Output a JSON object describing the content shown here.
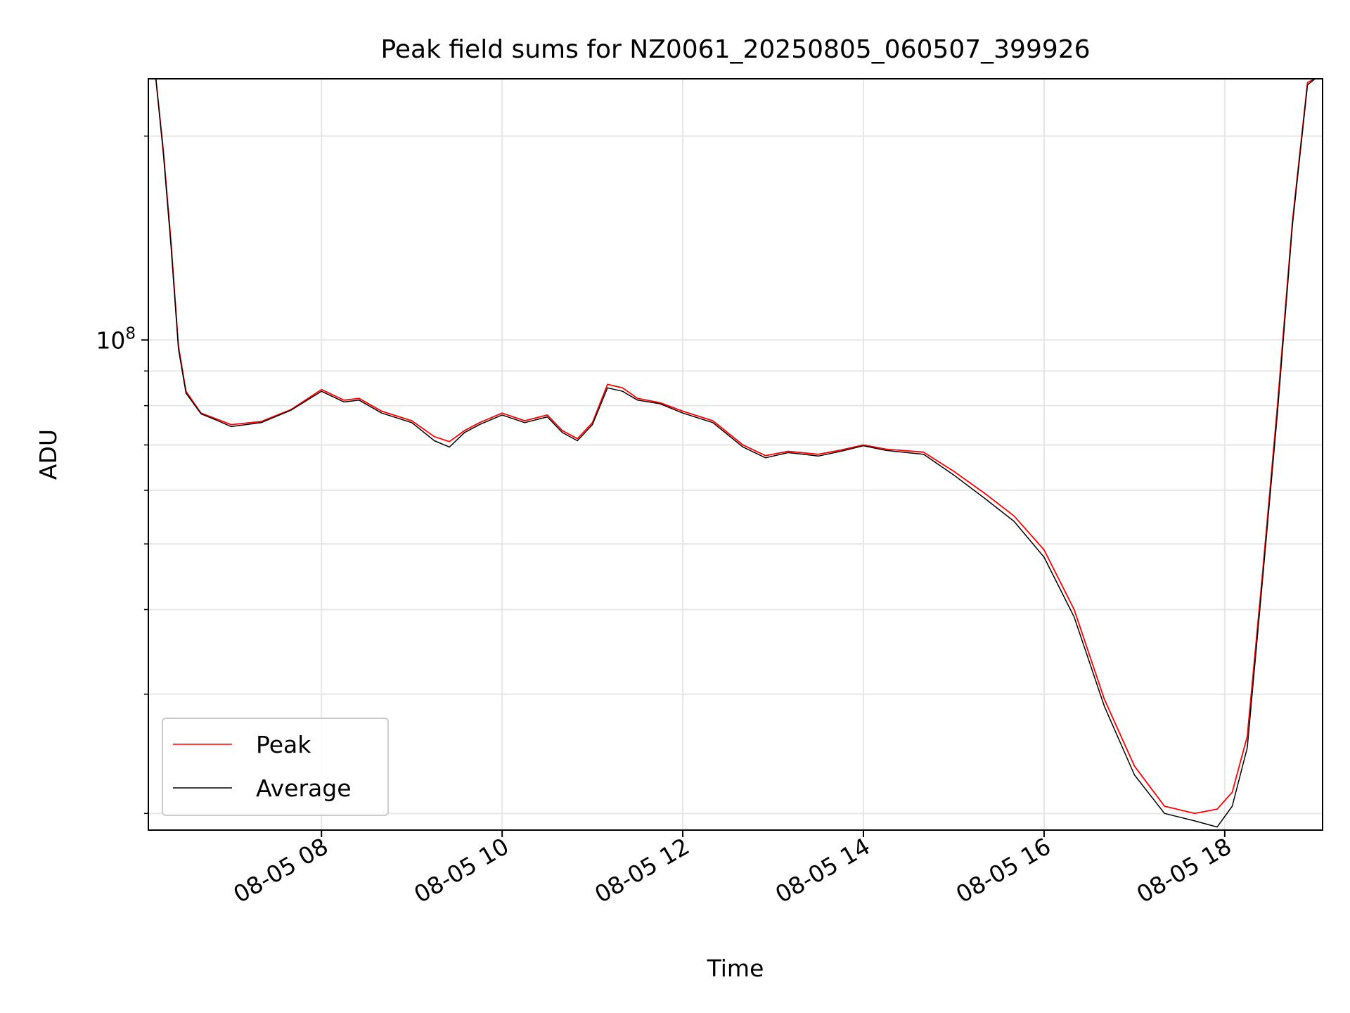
{
  "chart_data": {
    "type": "line",
    "title": "Peak field sums for NZ0061_20250805_060507_399926",
    "xlabel": "Time",
    "ylabel": "ADU",
    "y_scale": "log",
    "grid": true,
    "legend_position": "lower-left",
    "xlim": [
      "2025-08-05 06:05",
      "2025-08-05 19:05"
    ],
    "ylim": [
      18900000,
      243000000
    ],
    "x_ticks": [
      "2025-08-05 08:00",
      "2025-08-05 10:00",
      "2025-08-05 12:00",
      "2025-08-05 14:00",
      "2025-08-05 16:00",
      "2025-08-05 18:00"
    ],
    "x_tick_labels": [
      "08-05 08",
      "08-05 10",
      "08-05 12",
      "08-05 14",
      "08-05 16",
      "08-05 18"
    ],
    "y_major_ticks": [
      100000000
    ],
    "y_tick_labels": [
      {
        "base": "10",
        "exp": "8"
      }
    ],
    "y_minor_ticks": [
      20000000,
      30000000,
      40000000,
      50000000,
      60000000,
      70000000,
      80000000,
      90000000,
      200000000
    ],
    "series": [
      {
        "name": "Peak",
        "color": "#ff0000",
        "x": [
          "2025-08-05 06:10",
          "2025-08-05 06:15",
          "2025-08-05 06:20",
          "2025-08-05 06:25",
          "2025-08-05 06:30",
          "2025-08-05 06:40",
          "2025-08-05 06:50",
          "2025-08-05 07:00",
          "2025-08-05 07:20",
          "2025-08-05 07:40",
          "2025-08-05 08:00",
          "2025-08-05 08:15",
          "2025-08-05 08:25",
          "2025-08-05 08:40",
          "2025-08-05 09:00",
          "2025-08-05 09:15",
          "2025-08-05 09:25",
          "2025-08-05 09:35",
          "2025-08-05 09:45",
          "2025-08-05 10:00",
          "2025-08-05 10:15",
          "2025-08-05 10:30",
          "2025-08-05 10:40",
          "2025-08-05 10:50",
          "2025-08-05 11:00",
          "2025-08-05 11:10",
          "2025-08-05 11:20",
          "2025-08-05 11:30",
          "2025-08-05 11:45",
          "2025-08-05 12:00",
          "2025-08-05 12:20",
          "2025-08-05 12:40",
          "2025-08-05 12:55",
          "2025-08-05 13:10",
          "2025-08-05 13:30",
          "2025-08-05 13:45",
          "2025-08-05 14:00",
          "2025-08-05 14:15",
          "2025-08-05 14:40",
          "2025-08-05 15:00",
          "2025-08-05 15:20",
          "2025-08-05 15:40",
          "2025-08-05 16:00",
          "2025-08-05 16:20",
          "2025-08-05 16:40",
          "2025-08-05 17:00",
          "2025-08-05 17:20",
          "2025-08-05 17:40",
          "2025-08-05 17:55",
          "2025-08-05 18:05",
          "2025-08-05 18:15",
          "2025-08-05 18:25",
          "2025-08-05 18:35",
          "2025-08-05 18:45",
          "2025-08-05 18:55",
          "2025-08-05 19:00"
        ],
        "y": [
          243000000,
          190000000,
          140000000,
          98000000,
          84000000,
          78000000,
          76500000,
          75000000,
          75800000,
          79000000,
          84500000,
          81500000,
          82000000,
          78500000,
          76000000,
          72000000,
          70800000,
          73500000,
          75500000,
          78000000,
          76000000,
          77500000,
          73500000,
          71500000,
          75500000,
          86000000,
          85000000,
          82000000,
          80800000,
          78500000,
          76000000,
          70000000,
          67500000,
          68500000,
          67800000,
          68800000,
          70000000,
          69000000,
          68300000,
          64000000,
          59500000,
          55000000,
          49000000,
          40000000,
          29500000,
          23500000,
          20500000,
          20000000,
          20300000,
          21500000,
          26000000,
          45000000,
          80000000,
          150000000,
          240000000,
          243000000
        ]
      },
      {
        "name": "Average",
        "color": "#000000",
        "x": [
          "2025-08-05 06:10",
          "2025-08-05 06:15",
          "2025-08-05 06:20",
          "2025-08-05 06:25",
          "2025-08-05 06:30",
          "2025-08-05 06:40",
          "2025-08-05 06:50",
          "2025-08-05 07:00",
          "2025-08-05 07:20",
          "2025-08-05 07:40",
          "2025-08-05 08:00",
          "2025-08-05 08:15",
          "2025-08-05 08:25",
          "2025-08-05 08:40",
          "2025-08-05 09:00",
          "2025-08-05 09:15",
          "2025-08-05 09:25",
          "2025-08-05 09:35",
          "2025-08-05 09:45",
          "2025-08-05 10:00",
          "2025-08-05 10:15",
          "2025-08-05 10:30",
          "2025-08-05 10:40",
          "2025-08-05 10:50",
          "2025-08-05 11:00",
          "2025-08-05 11:10",
          "2025-08-05 11:20",
          "2025-08-05 11:30",
          "2025-08-05 11:45",
          "2025-08-05 12:00",
          "2025-08-05 12:20",
          "2025-08-05 12:40",
          "2025-08-05 12:55",
          "2025-08-05 13:10",
          "2025-08-05 13:30",
          "2025-08-05 13:45",
          "2025-08-05 14:00",
          "2025-08-05 14:15",
          "2025-08-05 14:40",
          "2025-08-05 15:00",
          "2025-08-05 15:20",
          "2025-08-05 15:40",
          "2025-08-05 16:00",
          "2025-08-05 16:20",
          "2025-08-05 16:40",
          "2025-08-05 17:00",
          "2025-08-05 17:20",
          "2025-08-05 17:40",
          "2025-08-05 17:55",
          "2025-08-05 18:05",
          "2025-08-05 18:15",
          "2025-08-05 18:25",
          "2025-08-05 18:35",
          "2025-08-05 18:45",
          "2025-08-05 18:55",
          "2025-08-05 19:00"
        ],
        "y": [
          243000000,
          188000000,
          138000000,
          97000000,
          83500000,
          77800000,
          76200000,
          74500000,
          75500000,
          78800000,
          84000000,
          81000000,
          81500000,
          78000000,
          75500000,
          71000000,
          69500000,
          73000000,
          75000000,
          77500000,
          75500000,
          77000000,
          73000000,
          71000000,
          75000000,
          85000000,
          84000000,
          81500000,
          80500000,
          78000000,
          75500000,
          69500000,
          67000000,
          68200000,
          67400000,
          68500000,
          69800000,
          68700000,
          67800000,
          63200000,
          58500000,
          54000000,
          47800000,
          39000000,
          28800000,
          22800000,
          20000000,
          19500000,
          19100000,
          20500000,
          25000000,
          44000000,
          78000000,
          148000000,
          238000000,
          243000000
        ]
      }
    ]
  }
}
